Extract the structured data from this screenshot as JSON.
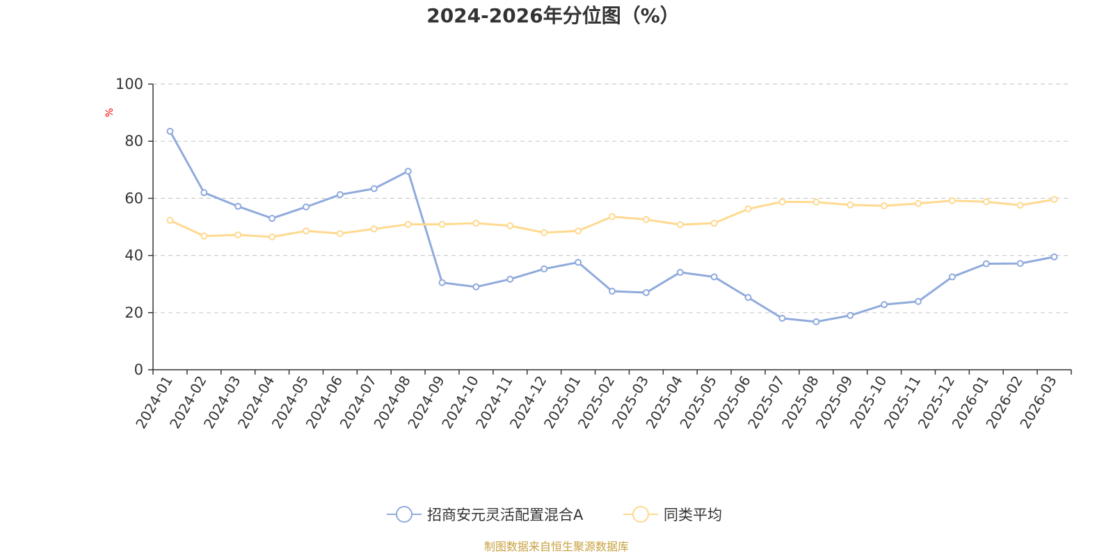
{
  "chart_data": {
    "type": "line",
    "title": "2024-2026年分位图（%）",
    "ylabel": "%",
    "xlabel": "",
    "ylim": [
      0,
      100
    ],
    "yticks": [
      0,
      20,
      40,
      60,
      80,
      100
    ],
    "grid": true,
    "legend_position": "bottom-center",
    "categories": [
      "2024-01",
      "2024-02",
      "2024-03",
      "2024-04",
      "2024-05",
      "2024-06",
      "2024-07",
      "2024-08",
      "2024-09",
      "2024-10",
      "2024-11",
      "2024-12",
      "2025-01",
      "2025-02",
      "2025-03",
      "2025-04",
      "2025-05",
      "2025-06",
      "2025-07",
      "2025-08",
      "2025-09",
      "2025-10",
      "2025-11",
      "2025-12",
      "2026-01",
      "2026-02",
      "2026-03"
    ],
    "series": [
      {
        "name": "招商安元灵活配置混合A",
        "color": "#8faadc",
        "values": [
          83.5,
          62.0,
          57.2,
          53.0,
          57.0,
          61.3,
          63.4,
          69.5,
          30.5,
          29.0,
          31.7,
          35.3,
          37.6,
          27.5,
          27.0,
          34.1,
          32.5,
          25.3,
          18.0,
          16.8,
          19.0,
          22.8,
          23.9,
          32.5,
          37.1,
          37.2,
          39.5
        ]
      },
      {
        "name": "同类平均",
        "color": "#ffd98f",
        "values": [
          52.3,
          46.8,
          47.2,
          46.5,
          48.6,
          47.7,
          49.3,
          50.9,
          50.9,
          51.3,
          50.4,
          48.0,
          48.6,
          53.6,
          52.6,
          50.8,
          51.3,
          56.3,
          58.8,
          58.7,
          57.7,
          57.4,
          58.2,
          59.2,
          58.8,
          57.6,
          59.6
        ]
      }
    ],
    "source": "制图数据来自恒生聚源数据库",
    "source_color": "#c8a040",
    "axis_color": "#333333",
    "grid_color": "#cccccc"
  }
}
